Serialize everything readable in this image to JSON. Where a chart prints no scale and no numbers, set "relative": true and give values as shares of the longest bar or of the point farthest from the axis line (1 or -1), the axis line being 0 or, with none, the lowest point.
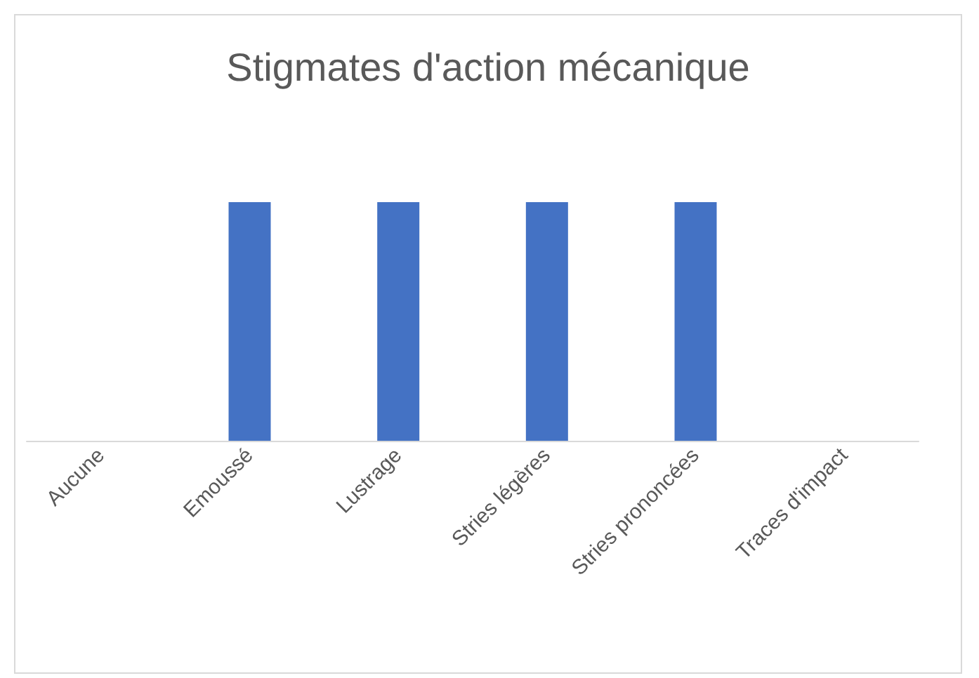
{
  "chart_data": {
    "type": "bar",
    "title": "Stigmates d'action mécanique",
    "relative": true,
    "categories": [
      "Aucune",
      "Emoussé",
      "Lustrage",
      "Stries légères",
      "Stries prononcées",
      "Traces d'impact"
    ],
    "values": [
      0,
      1,
      1,
      1,
      1,
      0
    ],
    "color": "#4472c4"
  }
}
